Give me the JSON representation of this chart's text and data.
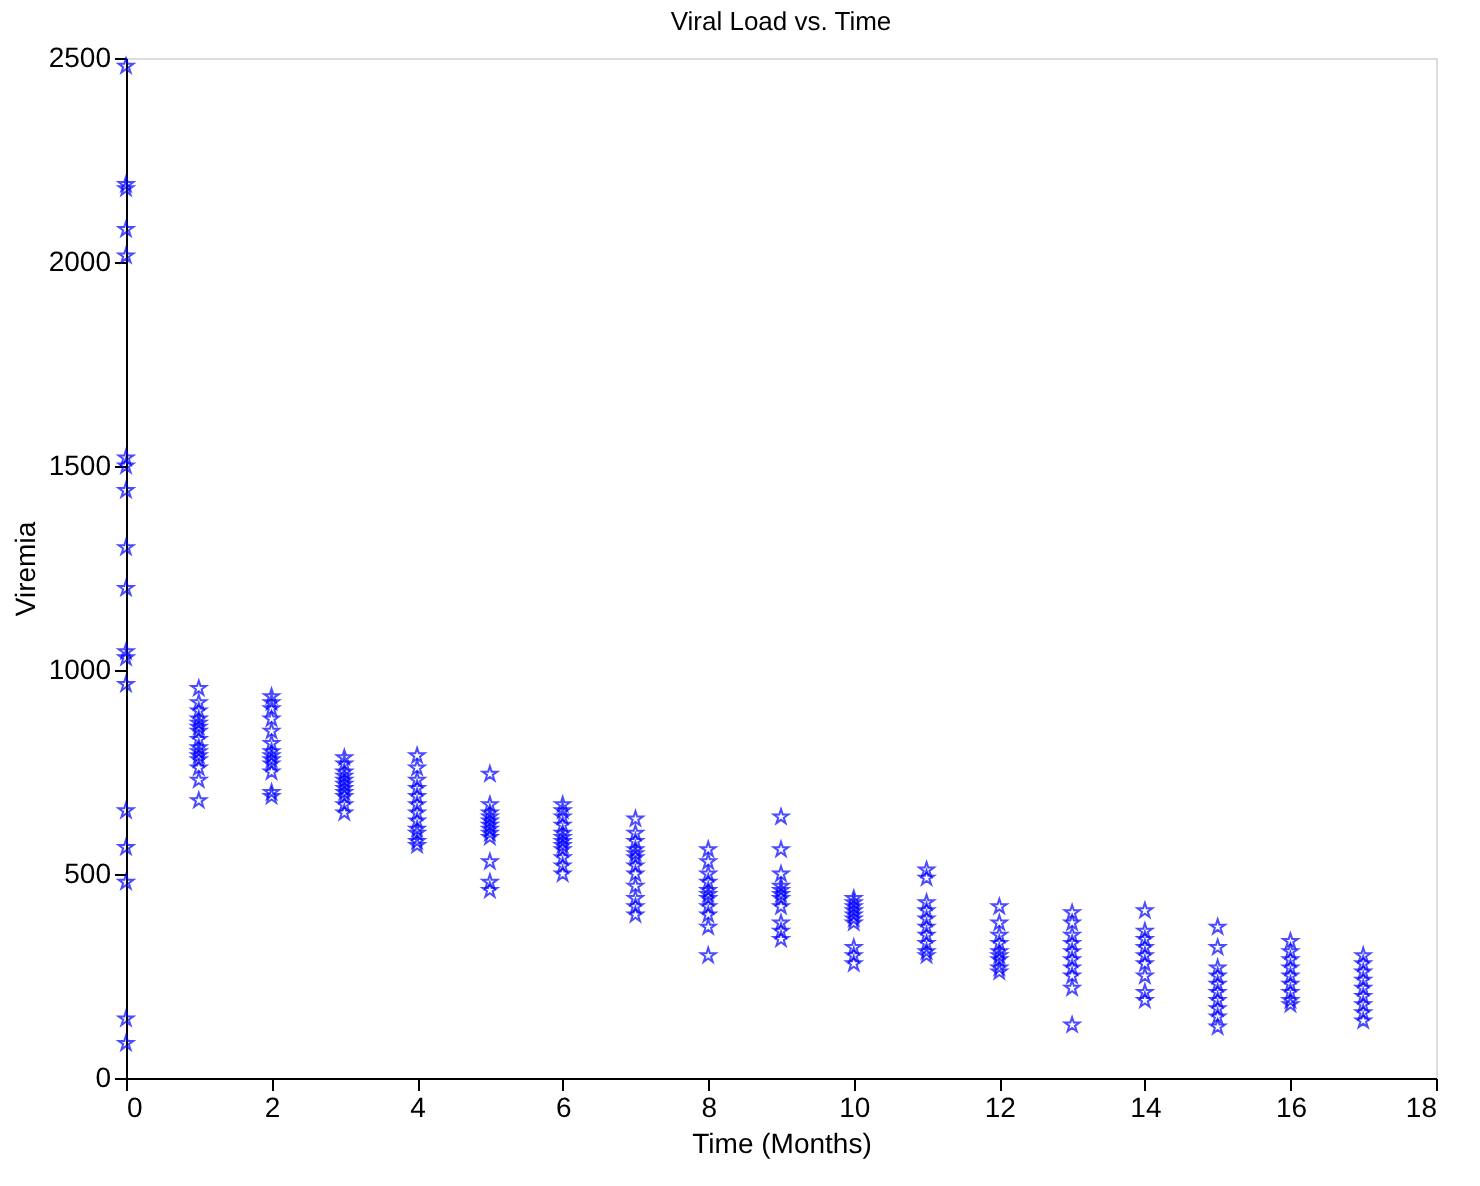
{
  "chart_data": {
    "type": "scatter",
    "title": "Viral Load vs. Time",
    "xlabel": "Time (Months)",
    "ylabel": "Viremia",
    "x": [
      0,
      0,
      0,
      0,
      0,
      0,
      0,
      0,
      0,
      0,
      0,
      0,
      0,
      0,
      0,
      0,
      0,
      0,
      1,
      1,
      1,
      1,
      1,
      1,
      1,
      1,
      1,
      1,
      1,
      1,
      1,
      1,
      1,
      2,
      2,
      2,
      2,
      2,
      2,
      2,
      2,
      2,
      2,
      2,
      2,
      2,
      3,
      3,
      3,
      3,
      3,
      3,
      3,
      3,
      3,
      3,
      3,
      4,
      4,
      4,
      4,
      4,
      4,
      4,
      4,
      4,
      4,
      4,
      4,
      5,
      5,
      5,
      5,
      5,
      5,
      5,
      5,
      5,
      5,
      5,
      5,
      6,
      6,
      6,
      6,
      6,
      6,
      6,
      6,
      6,
      6,
      6,
      6,
      7,
      7,
      7,
      7,
      7,
      7,
      7,
      7,
      7,
      7,
      7,
      7,
      8,
      8,
      8,
      8,
      8,
      8,
      8,
      8,
      8,
      8,
      8,
      9,
      9,
      9,
      9,
      9,
      9,
      9,
      9,
      9,
      9,
      9,
      10,
      10,
      10,
      10,
      10,
      10,
      10,
      10,
      10,
      10,
      11,
      11,
      11,
      11,
      11,
      11,
      11,
      11,
      11,
      11,
      12,
      12,
      12,
      12,
      12,
      12,
      12,
      12,
      12,
      13,
      13,
      13,
      13,
      13,
      13,
      13,
      13,
      13,
      13,
      14,
      14,
      14,
      14,
      14,
      14,
      14,
      14,
      14,
      15,
      15,
      15,
      15,
      15,
      15,
      15,
      15,
      15,
      15,
      16,
      16,
      16,
      16,
      16,
      16,
      16,
      16,
      16,
      17,
      17,
      17,
      17,
      17,
      17,
      17,
      17,
      17
    ],
    "series": [
      {
        "color": "#0000ff",
        "values": [
          2480,
          2190,
          2180,
          2080,
          2015,
          1520,
          1500,
          1440,
          1300,
          1200,
          1045,
          1030,
          965,
          655,
          565,
          480,
          145,
          85,
          955,
          920,
          900,
          880,
          870,
          860,
          850,
          830,
          810,
          800,
          790,
          780,
          760,
          730,
          680,
          935,
          920,
          905,
          880,
          850,
          820,
          800,
          790,
          780,
          770,
          750,
          700,
          690,
          785,
          770,
          750,
          740,
          730,
          720,
          710,
          700,
          690,
          670,
          650,
          790,
          760,
          730,
          710,
          690,
          670,
          650,
          630,
          610,
          600,
          580,
          570,
          745,
          670,
          650,
          640,
          630,
          620,
          610,
          600,
          590,
          530,
          480,
          460,
          670,
          655,
          640,
          620,
          600,
          590,
          580,
          570,
          560,
          540,
          520,
          500,
          635,
          600,
          580,
          560,
          550,
          540,
          520,
          500,
          470,
          440,
          420,
          400,
          560,
          530,
          500,
          480,
          460,
          450,
          440,
          420,
          400,
          370,
          300,
          640,
          560,
          500,
          470,
          460,
          450,
          440,
          420,
          380,
          360,
          340,
          440,
          430,
          420,
          410,
          400,
          390,
          380,
          320,
          300,
          280,
          510,
          490,
          430,
          410,
          390,
          370,
          350,
          330,
          310,
          300,
          420,
          380,
          350,
          330,
          310,
          300,
          290,
          270,
          260,
          405,
          380,
          350,
          330,
          310,
          290,
          270,
          250,
          220,
          130,
          410,
          360,
          340,
          320,
          300,
          280,
          250,
          210,
          190,
          370,
          320,
          270,
          250,
          230,
          210,
          190,
          170,
          150,
          125,
          335,
          310,
          290,
          270,
          250,
          230,
          210,
          190,
          180,
          300,
          280,
          260,
          240,
          220,
          200,
          180,
          160,
          140
        ]
      }
    ],
    "xlim": [
      0,
      18
    ],
    "xticks": [
      0,
      2,
      4,
      6,
      8,
      10,
      12,
      14,
      16,
      18
    ],
    "ylim": [
      0,
      2500
    ],
    "yticks": [
      0,
      500,
      1000,
      1500,
      2000,
      2500
    ],
    "marker": "star",
    "grid": false,
    "legend": false
  }
}
